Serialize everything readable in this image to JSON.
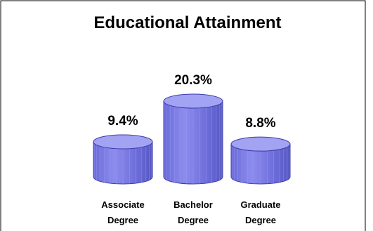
{
  "chart_data": {
    "type": "bar",
    "style": "3d-cylinder",
    "title": "Educational Attainment",
    "categories": [
      [
        "Associate",
        "Degree"
      ],
      [
        "Bachelor",
        "Degree"
      ],
      [
        "Graduate",
        "Degree"
      ]
    ],
    "values": [
      9.4,
      20.3,
      8.8
    ],
    "data_labels": [
      "9.4%",
      "20.3%",
      "8.8%"
    ],
    "value_unit": "%",
    "xlabel": "",
    "ylabel": "",
    "ylim": [
      0,
      20.3
    ],
    "grid": false,
    "legend": "none"
  },
  "colors": {
    "bar_body": "#7c7ce6",
    "bar_top": "#a3a3f3",
    "bar_stroke": "#3a3aa8",
    "frame": "#000000",
    "background": "#ffffff"
  }
}
